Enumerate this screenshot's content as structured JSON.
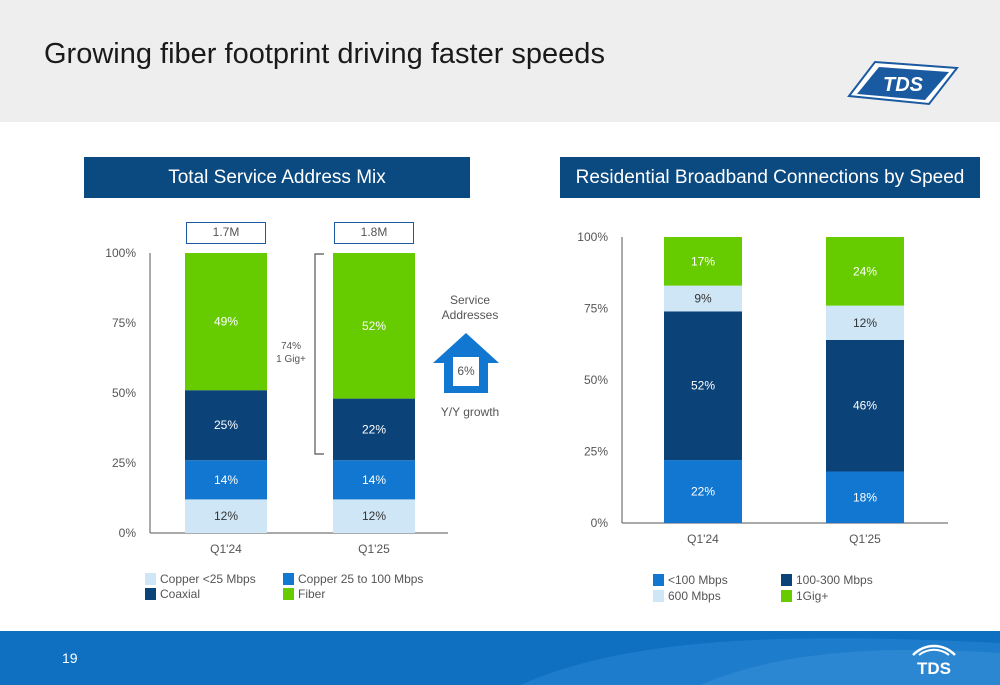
{
  "title": "Growing fiber footprint driving faster speeds",
  "logo_text": "TDS",
  "footer": {
    "page_number": "19",
    "logo_text": "TDS"
  },
  "colors": {
    "header_bg": "#eeeeee",
    "panel_title_bg": "#0a4a80",
    "footer_bg": "#0f6fc0",
    "copper_lt25": "#cfe6f7",
    "copper_25_100": "#1177d1",
    "coaxial": "#0b4278",
    "fiber": "#66cc00",
    "lt100": "#1177d1",
    "s100_300": "#0b4278",
    "s600": "#cfe6f7",
    "gig": "#66cc00"
  },
  "left_panel": {
    "title": "Total Service Address Mix",
    "totals": [
      "1.7M",
      "1.8M"
    ],
    "bracket_label_line1": "74%",
    "bracket_label_line2": "1 Gig+",
    "callout": {
      "label_line1": "Service",
      "label_line2": "Addresses",
      "value": "6%",
      "caption": "Y/Y growth"
    }
  },
  "right_panel": {
    "title": "Residential Broadband Connections by Speed"
  },
  "chart_data": [
    {
      "type": "bar",
      "stacked": true,
      "title": "Total Service Address Mix",
      "categories": [
        "Q1'24",
        "Q1'25"
      ],
      "y_ticks": [
        "0%",
        "25%",
        "50%",
        "75%",
        "100%"
      ],
      "ylim": [
        0,
        100
      ],
      "series": [
        {
          "name": "Copper <25 Mbps",
          "color": "#cfe6f7",
          "label_color": "#333333",
          "values": [
            12,
            12
          ],
          "labels": [
            "12%",
            "12%"
          ]
        },
        {
          "name": "Copper 25 to 100 Mbps",
          "color": "#1177d1",
          "label_color": "#ffffff",
          "values": [
            14,
            14
          ],
          "labels": [
            "14%",
            "14%"
          ]
        },
        {
          "name": "Coaxial",
          "color": "#0b4278",
          "label_color": "#ffffff",
          "values": [
            25,
            22
          ],
          "labels": [
            "25%",
            "22%"
          ]
        },
        {
          "name": "Fiber",
          "color": "#66cc00",
          "label_color": "#ffffff",
          "values": [
            49,
            52
          ],
          "labels": [
            "49%",
            "52%"
          ]
        }
      ],
      "legend": [
        {
          "name": "Copper <25 Mbps",
          "color": "#cfe6f7"
        },
        {
          "name": "Copper 25 to 100 Mbps",
          "color": "#1177d1"
        },
        {
          "name": "Coaxial",
          "color": "#0b4278"
        },
        {
          "name": "Fiber",
          "color": "#66cc00"
        }
      ],
      "legend_position": "bottom"
    },
    {
      "type": "bar",
      "stacked": true,
      "title": "Residential Broadband Connections by Speed",
      "categories": [
        "Q1'24",
        "Q1'25"
      ],
      "y_ticks": [
        "0%",
        "25%",
        "50%",
        "75%",
        "100%"
      ],
      "ylim": [
        0,
        100
      ],
      "series": [
        {
          "name": "<100 Mbps",
          "color": "#1177d1",
          "label_color": "#ffffff",
          "values": [
            22,
            18
          ],
          "labels": [
            "22%",
            "18%"
          ]
        },
        {
          "name": "100-300  Mbps",
          "color": "#0b4278",
          "label_color": "#ffffff",
          "values": [
            52,
            46
          ],
          "labels": [
            "52%",
            "46%"
          ]
        },
        {
          "name": "600 Mbps",
          "color": "#cfe6f7",
          "label_color": "#333333",
          "values": [
            9,
            12
          ],
          "labels": [
            "9%",
            "12%"
          ]
        },
        {
          "name": "1Gig+",
          "color": "#66cc00",
          "label_color": "#ffffff",
          "values": [
            17,
            24
          ],
          "labels": [
            "17%",
            "24%"
          ]
        }
      ],
      "legend": [
        {
          "name": "<100 Mbps",
          "color": "#1177d1"
        },
        {
          "name": "100-300  Mbps",
          "color": "#0b4278"
        },
        {
          "name": "600 Mbps",
          "color": "#cfe6f7"
        },
        {
          "name": "1Gig+",
          "color": "#66cc00"
        }
      ],
      "legend_position": "bottom"
    }
  ]
}
